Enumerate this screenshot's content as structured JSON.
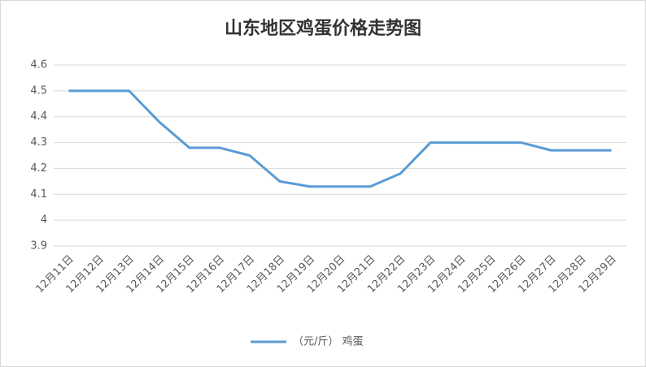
{
  "chart_data": {
    "type": "line",
    "title": "山东地区鸡蛋价格走势图",
    "categories": [
      "12月11日",
      "12月12日",
      "12月13日",
      "12月14日",
      "12月15日",
      "12月16日",
      "12月17日",
      "12月18日",
      "12月19日",
      "12月20日",
      "12月21日",
      "12月22日",
      "12月23日",
      "12月24日",
      "12月25日",
      "12月26日",
      "12月27日",
      "12月28日",
      "12月29日"
    ],
    "series": [
      {
        "name": "（元/斤） 鸡蛋",
        "color": "#5b9bd5",
        "values": [
          4.5,
          4.5,
          4.5,
          4.38,
          4.28,
          4.28,
          4.25,
          4.15,
          4.13,
          4.13,
          4.13,
          4.18,
          4.3,
          4.3,
          4.3,
          4.3,
          4.27,
          4.27,
          4.27
        ]
      }
    ],
    "ylim": [
      3.9,
      4.6
    ],
    "yticks": [
      3.9,
      4,
      4.1,
      4.2,
      4.3,
      4.4,
      4.5,
      4.6
    ],
    "grid": true,
    "legend": "bottom"
  }
}
